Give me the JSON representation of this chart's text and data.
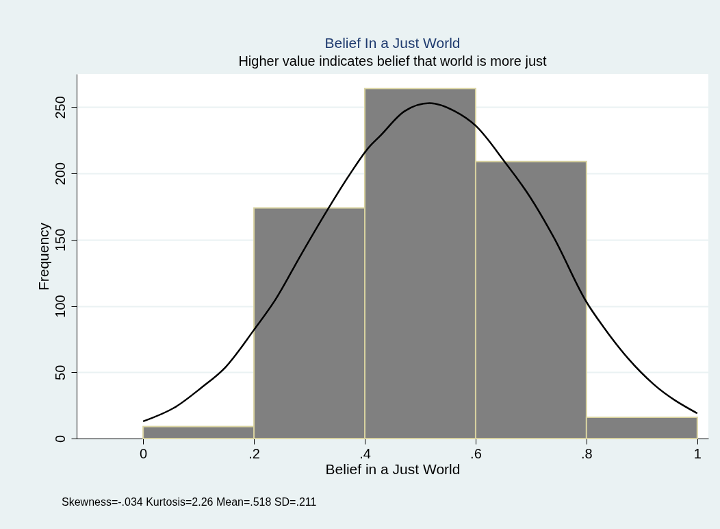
{
  "chart_data": {
    "type": "histogram",
    "title": "Belief In a Just World",
    "subtitle": "Higher value indicates belief that world is more just",
    "xlabel": "Belief in a Just World",
    "ylabel": "Frequency",
    "bins": [
      0,
      0.2,
      0.4,
      0.6,
      0.8,
      1
    ],
    "values": [
      9,
      174,
      264,
      209,
      16
    ],
    "color": "#808080",
    "series": [
      {
        "type": "line",
        "color": "#000000",
        "x": [
          0,
          0.059,
          0.104,
          0.149,
          0.2,
          0.239,
          0.284,
          0.329,
          0.374,
          0.408,
          0.427,
          0.472,
          0.517,
          0.562,
          0.6,
          0.652,
          0.697,
          0.742,
          0.8,
          0.831,
          0.876,
          0.921,
          1.0
        ],
        "values": [
          13,
          24,
          38,
          54,
          82,
          105,
          138,
          170,
          200,
          220,
          228,
          247,
          253,
          247,
          236,
          209,
          183,
          151,
          103,
          84,
          60,
          41,
          19
        ]
      }
    ],
    "xlim": [
      -0.12,
      1.02
    ],
    "ylim": [
      0,
      275
    ],
    "xticks": [
      0,
      {
        "value": 0.2,
        "label": ".2"
      },
      {
        "value": 0.4,
        "label": ".4"
      },
      {
        "value": 0.6,
        "label": ".6"
      },
      {
        "value": 0.8,
        "label": ".8"
      },
      1
    ],
    "yticks": [
      0,
      50,
      100,
      150,
      200,
      250
    ],
    "grid": "y",
    "annotations": [
      "Skewness=-.034 Kurtosis=2.26 Mean=.518 SD=.211"
    ]
  }
}
